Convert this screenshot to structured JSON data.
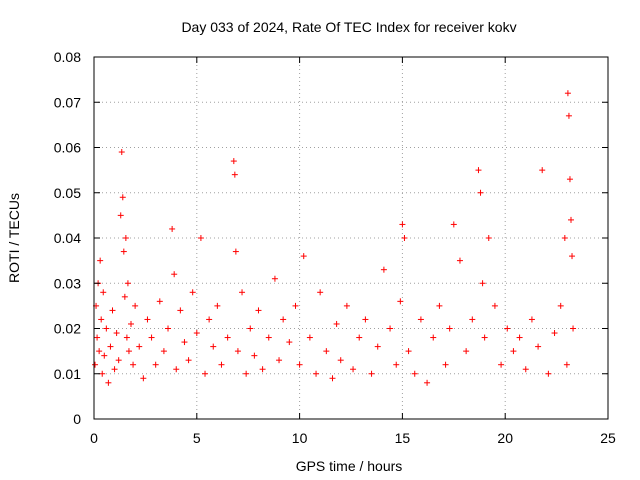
{
  "chart_data": {
    "type": "scatter",
    "title": "Day 033 of 2024, Rate Of TEC Index for receiver kokv",
    "xlabel": "GPS time / hours",
    "ylabel": "ROTI / TECUs",
    "xlim": [
      0,
      25
    ],
    "ylim": [
      0,
      0.08
    ],
    "x_ticks": [
      0,
      5,
      10,
      15,
      20,
      25
    ],
    "x_tick_labels": [
      "0",
      "5",
      "10",
      "15",
      "20",
      "25"
    ],
    "y_ticks": [
      0,
      0.01,
      0.02,
      0.03,
      0.04,
      0.05,
      0.06,
      0.07,
      0.08
    ],
    "y_tick_labels": [
      "0",
      "0.01",
      "0.02",
      "0.03",
      "0.04",
      "0.05",
      "0.06",
      "0.07",
      "0.08"
    ],
    "grid": true,
    "marker": "+",
    "marker_color": "#ff0000",
    "series": [
      {
        "name": "ROTI",
        "x": [
          0.05,
          0.1,
          0.15,
          0.2,
          0.25,
          0.3,
          0.35,
          0.4,
          0.45,
          0.5,
          0.6,
          0.7,
          0.8,
          0.9,
          1.0,
          1.1,
          1.2,
          1.3,
          1.35,
          1.4,
          1.45,
          1.5,
          1.55,
          1.6,
          1.65,
          1.7,
          1.8,
          1.9,
          2.0,
          2.2,
          2.4,
          2.6,
          2.8,
          3.0,
          3.2,
          3.4,
          3.6,
          3.8,
          3.9,
          4.0,
          4.2,
          4.4,
          4.6,
          4.8,
          5.0,
          5.2,
          5.4,
          5.6,
          5.8,
          6.0,
          6.2,
          6.5,
          6.8,
          6.85,
          6.9,
          7.0,
          7.2,
          7.4,
          7.6,
          7.8,
          8.0,
          8.2,
          8.5,
          8.8,
          9.0,
          9.2,
          9.5,
          9.8,
          10.0,
          10.2,
          10.5,
          10.8,
          11.0,
          11.3,
          11.6,
          11.8,
          12.0,
          12.3,
          12.6,
          12.9,
          13.2,
          13.5,
          13.8,
          14.1,
          14.4,
          14.7,
          14.9,
          15.0,
          15.1,
          15.3,
          15.6,
          15.9,
          16.2,
          16.5,
          16.8,
          17.1,
          17.3,
          17.5,
          17.8,
          18.1,
          18.4,
          18.7,
          18.8,
          18.9,
          19.0,
          19.2,
          19.5,
          19.8,
          20.1,
          20.4,
          20.7,
          21.0,
          21.3,
          21.6,
          21.8,
          22.1,
          22.4,
          22.7,
          22.9,
          23.0,
          23.05,
          23.1,
          23.15,
          23.2,
          23.25,
          23.3
        ],
        "y": [
          0.012,
          0.025,
          0.018,
          0.03,
          0.015,
          0.035,
          0.022,
          0.01,
          0.028,
          0.014,
          0.02,
          0.008,
          0.016,
          0.024,
          0.011,
          0.019,
          0.013,
          0.045,
          0.059,
          0.049,
          0.037,
          0.027,
          0.04,
          0.018,
          0.03,
          0.015,
          0.021,
          0.012,
          0.025,
          0.016,
          0.009,
          0.022,
          0.018,
          0.012,
          0.026,
          0.015,
          0.02,
          0.042,
          0.032,
          0.011,
          0.024,
          0.017,
          0.013,
          0.028,
          0.019,
          0.04,
          0.01,
          0.022,
          0.016,
          0.025,
          0.012,
          0.018,
          0.057,
          0.054,
          0.037,
          0.015,
          0.028,
          0.01,
          0.02,
          0.014,
          0.024,
          0.011,
          0.018,
          0.031,
          0.013,
          0.022,
          0.017,
          0.025,
          0.012,
          0.036,
          0.018,
          0.01,
          0.028,
          0.015,
          0.009,
          0.021,
          0.013,
          0.025,
          0.011,
          0.018,
          0.022,
          0.01,
          0.016,
          0.033,
          0.02,
          0.012,
          0.026,
          0.043,
          0.04,
          0.015,
          0.01,
          0.022,
          0.008,
          0.018,
          0.025,
          0.012,
          0.02,
          0.043,
          0.035,
          0.015,
          0.022,
          0.055,
          0.05,
          0.03,
          0.018,
          0.04,
          0.025,
          0.012,
          0.02,
          0.015,
          0.018,
          0.011,
          0.022,
          0.016,
          0.055,
          0.01,
          0.019,
          0.025,
          0.04,
          0.012,
          0.072,
          0.067,
          0.053,
          0.044,
          0.036,
          0.02
        ]
      }
    ]
  }
}
